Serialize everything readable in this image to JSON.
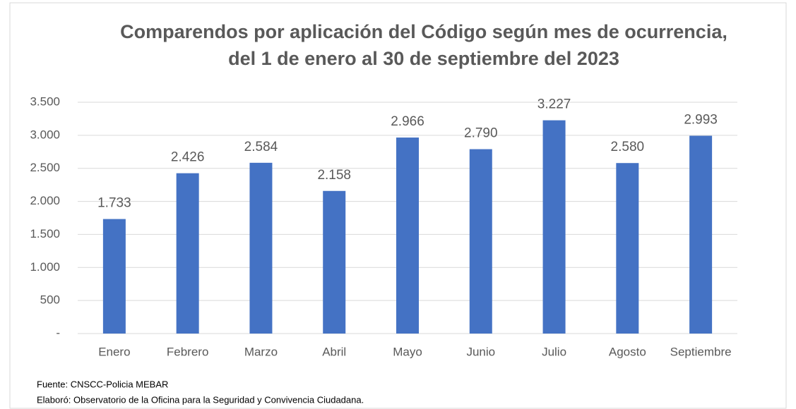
{
  "chart_data": {
    "type": "bar",
    "title": [
      "Comparendos por aplicación del Código según mes de ocurrencia,",
      "del 1 de enero al 30 de septiembre del 2023"
    ],
    "categories": [
      "Enero",
      "Febrero",
      "Marzo",
      "Abril",
      "Mayo",
      "Junio",
      "Julio",
      "Agosto",
      "Septiembre"
    ],
    "values": [
      1733,
      2426,
      2584,
      2158,
      2966,
      2790,
      3227,
      2580,
      2993
    ],
    "value_labels": [
      "1.733",
      "2.426",
      "2.584",
      "2.158",
      "2.966",
      "2.790",
      "3.227",
      "2.580",
      "2.993"
    ],
    "color": "#4472c4",
    "ylim": [
      0,
      3500
    ],
    "yticks": [
      {
        "value": 0,
        "label": "-"
      },
      500,
      {
        "value": 1000,
        "label": "1.000"
      },
      {
        "value": 1500,
        "label": "1.500"
      },
      {
        "value": 2000,
        "label": "2.000"
      },
      {
        "value": 2500,
        "label": "2.500"
      },
      {
        "value": 3000,
        "label": "3.000"
      },
      {
        "value": 3500,
        "label": "3.500"
      }
    ],
    "grid": true,
    "notes": [
      "Fuente: CNSCC-Policia MEBAR",
      "Elaboró: Observatorio de la Oficina para la Seguridad y Convivencia Ciudadana."
    ]
  }
}
